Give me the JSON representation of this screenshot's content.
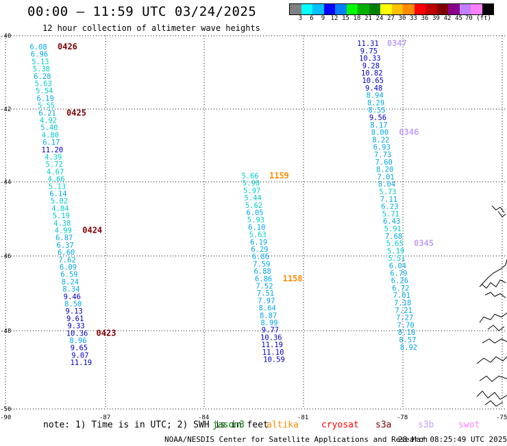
{
  "header": {
    "title": "00:00 – 11:59 UTC 03/24/2025",
    "subtitle": "12 hour collection of altimeter wave heights"
  },
  "color_scale": {
    "colors": [
      "#808080",
      "#00ffff",
      "#00bfff",
      "#0000ff",
      "#007fff",
      "#00ff00",
      "#00b000",
      "#008000",
      "#ffff00",
      "#ffc000",
      "#ff8c00",
      "#ff0000",
      "#c00000",
      "#800000",
      "#8b008b",
      "#c080ff",
      "#ff80ff",
      "#000000"
    ],
    "labels": [
      "3",
      "6",
      "9",
      "12",
      "15",
      "18",
      "21",
      "24",
      "27",
      "30",
      "33",
      "36",
      "39",
      "42",
      "45",
      "70 (ft)"
    ]
  },
  "axes": {
    "lat_labels": [
      "-40",
      "-42",
      "-44",
      "-46",
      "-48",
      "-50"
    ],
    "lon_labels": [
      "-90",
      "-87",
      "-84",
      "-81",
      "-78",
      "-75"
    ]
  },
  "tracks": [
    {
      "color": "#00bfff",
      "values": [
        "6.08",
        "6.96",
        "5.13",
        "5.38",
        "6.28",
        "5.63",
        "5.54",
        "6.19",
        "5.55",
        "6.21",
        "4.92",
        "5.40",
        "4.80",
        "6.17",
        "11.20",
        "4.39",
        "5.72",
        "4.67",
        "4.66",
        "5.13",
        "6.14",
        "5.02",
        "4.84",
        "5.19",
        "4.38",
        "4.99",
        "6.87",
        "6.37",
        "6.60",
        "7.62",
        "6.09",
        "6.59",
        "8.24",
        "8.34",
        "9.46",
        "8.50",
        "9.13",
        "9.61",
        "9.33",
        "10.36",
        "8.96",
        "9.65",
        "9.07",
        "11.19"
      ],
      "time_labels": [
        {
          "text": "0426",
          "index": 0
        },
        {
          "text": "0425",
          "index": 9
        },
        {
          "text": "0424",
          "index": 25
        },
        {
          "text": "0423",
          "index": 39
        }
      ]
    },
    {
      "color": "#00bfff",
      "values": [
        "5.66",
        "5.90",
        "5.97",
        "5.44",
        "5.62",
        "6.05",
        "5.93",
        "6.10",
        "5.63",
        "6.19",
        "6.29",
        "6.86",
        "7.59",
        "6.88",
        "6.86",
        "7.52",
        "7.51",
        "7.97",
        "8.64",
        "8.87",
        "8.99",
        "9.77",
        "10.36",
        "11.19",
        "11.10",
        "10.59"
      ],
      "time_labels": [
        {
          "text": "1159",
          "index": 0
        },
        {
          "text": "1158",
          "index": 14
        }
      ]
    },
    {
      "color": "#00bfff",
      "values": [
        "11.31",
        "9.75",
        "10.33",
        "9.28",
        "10.82",
        "10.65",
        "9.48",
        "8.94",
        "8.29",
        "8.55",
        "9.56",
        "8.17",
        "8.00",
        "8.22",
        "6.93",
        "7.73",
        "7.60",
        "8.20",
        "7.01",
        "8.04",
        "5.73",
        "7.11",
        "6.23",
        "5.71",
        "6.43",
        "5.91",
        "7.68",
        "5.65",
        "5.19",
        "5.51",
        "6.04",
        "6.79",
        "6.26",
        "6.72",
        "7.01",
        "7.18",
        "7.21",
        "7.27",
        "7.70",
        "8.18",
        "8.57",
        "8.92"
      ],
      "time_labels": [
        {
          "text": "0347",
          "index": 0
        },
        {
          "text": "0346",
          "index": 12
        },
        {
          "text": "0345",
          "index": 27
        }
      ]
    }
  ],
  "footer": {
    "note": "note: 1) Time is in UTC; 2) SWH is in feet",
    "satellites": [
      {
        "name": "jason3",
        "color": "#008000"
      },
      {
        "name": "altika",
        "color": "#ff8c00"
      },
      {
        "name": "cryosat",
        "color": "#ff0000"
      },
      {
        "name": "s3a",
        "color": "#800000"
      },
      {
        "name": "s3b",
        "color": "#c0a0ff"
      },
      {
        "name": "swot",
        "color": "#ff80ff"
      }
    ],
    "credit": "NOAA/NESDIS Center for Satellite Applications and Research",
    "timestamp": "28 Mar 08:25:49 UTC 2025"
  }
}
